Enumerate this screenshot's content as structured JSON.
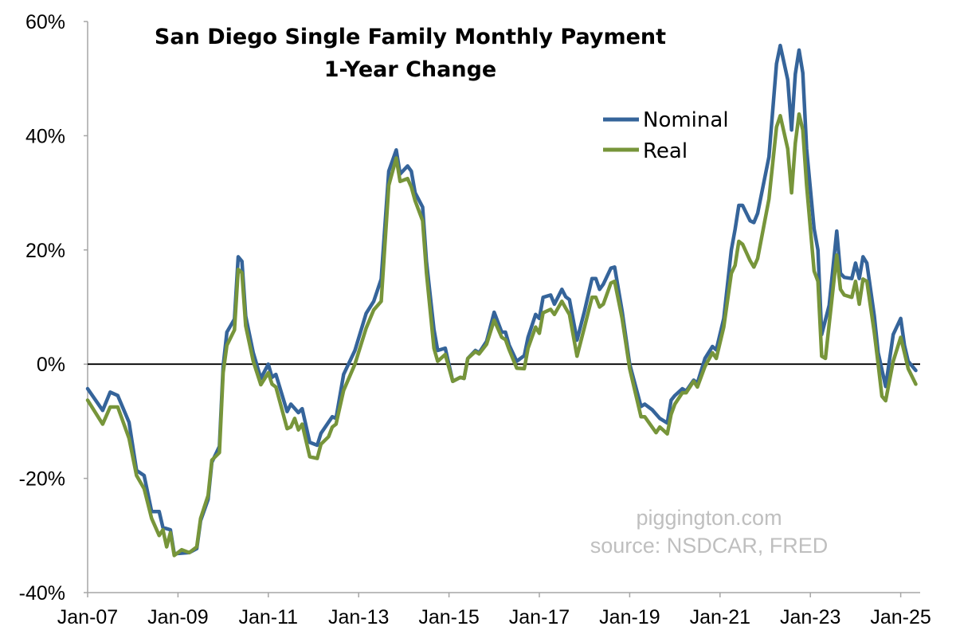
{
  "chart_data": {
    "type": "line",
    "title": "San Diego Single Family Monthly Payment",
    "subtitle": "1-Year Change",
    "xlabel": "",
    "ylabel": "",
    "ylim": [
      -40,
      60
    ],
    "y_ticks": [
      "60%",
      "40%",
      "20%",
      "0%",
      "-20%",
      "-40%"
    ],
    "y_tick_values": [
      60,
      40,
      20,
      0,
      -20,
      -40
    ],
    "x_ticks": [
      "Jan-07",
      "Jan-09",
      "Jan-11",
      "Jan-13",
      "Jan-15",
      "Jan-17",
      "Jan-19",
      "Jan-21",
      "Jan-23",
      "Jan-25"
    ],
    "x_tick_dates": [
      "2007-01",
      "2009-01",
      "2011-01",
      "2013-01",
      "2015-01",
      "2017-01",
      "2019-01",
      "2021-01",
      "2023-01",
      "2025-01"
    ],
    "xlim": [
      "2007-01",
      "2025-05"
    ],
    "grid": false,
    "zero_line": true,
    "legend_placement": "top-right",
    "watermark": [
      "piggington.com",
      "source: NSDCAR, FRED"
    ],
    "series": [
      {
        "name": "Nominal",
        "color": "#35649a",
        "points": [
          [
            "2007-01",
            -4.3
          ],
          [
            "2007-05",
            -8.1
          ],
          [
            "2007-07",
            -4.9
          ],
          [
            "2007-09",
            -5.5
          ],
          [
            "2007-12",
            -10.2
          ],
          [
            "2008-02",
            -18.6
          ],
          [
            "2008-04",
            -19.5
          ],
          [
            "2008-06",
            -25.8
          ],
          [
            "2008-08",
            -25.8
          ],
          [
            "2008-09",
            -28.6
          ],
          [
            "2008-11",
            -29
          ],
          [
            "2008-12",
            -33.2
          ],
          [
            "2009-04",
            -33
          ],
          [
            "2009-06",
            -32.3
          ],
          [
            "2009-07",
            -27.4
          ],
          [
            "2009-09",
            -23.7
          ],
          [
            "2009-10",
            -17.2
          ],
          [
            "2009-12",
            -14.4
          ],
          [
            "2010-01",
            -0.4
          ],
          [
            "2010-02",
            5.6
          ],
          [
            "2010-04",
            7.9
          ],
          [
            "2010-05",
            18.8
          ],
          [
            "2010-06",
            18
          ],
          [
            "2010-07",
            8.4
          ],
          [
            "2010-09",
            2
          ],
          [
            "2010-11",
            -2.5
          ],
          [
            "2011-01",
            0
          ],
          [
            "2011-02",
            -2.3
          ],
          [
            "2011-03",
            -1.8
          ],
          [
            "2011-06",
            -8.3
          ],
          [
            "2011-07",
            -7
          ],
          [
            "2011-09",
            -8.5
          ],
          [
            "2011-10",
            -7.8
          ],
          [
            "2011-12",
            -13.7
          ],
          [
            "2012-02",
            -14.2
          ],
          [
            "2012-03",
            -12.1
          ],
          [
            "2012-06",
            -9.2
          ],
          [
            "2012-07",
            -9.5
          ],
          [
            "2012-09",
            -1.8
          ],
          [
            "2012-12",
            2.4
          ],
          [
            "2013-03",
            8.9
          ],
          [
            "2013-05",
            11
          ],
          [
            "2013-07",
            14.9
          ],
          [
            "2013-09",
            33.8
          ],
          [
            "2013-11",
            37.5
          ],
          [
            "2013-12",
            33.3
          ],
          [
            "2014-02",
            34.7
          ],
          [
            "2014-03",
            33.8
          ],
          [
            "2014-04",
            30
          ],
          [
            "2014-06",
            27.5
          ],
          [
            "2014-07",
            18
          ],
          [
            "2014-09",
            6.1
          ],
          [
            "2014-10",
            2.4
          ],
          [
            "2014-12",
            2.8
          ],
          [
            "2015-02",
            -3
          ],
          [
            "2015-04",
            -2.3
          ],
          [
            "2015-05",
            -2.5
          ],
          [
            "2015-06",
            1
          ],
          [
            "2015-08",
            2.4
          ],
          [
            "2015-09",
            2
          ],
          [
            "2015-11",
            4
          ],
          [
            "2016-01",
            9.1
          ],
          [
            "2016-03",
            5.6
          ],
          [
            "2016-04",
            5.6
          ],
          [
            "2016-05",
            3.3
          ],
          [
            "2016-07",
            0.5
          ],
          [
            "2016-09",
            1.5
          ],
          [
            "2016-10",
            4.7
          ],
          [
            "2016-12",
            8.7
          ],
          [
            "2017-01",
            8
          ],
          [
            "2017-02",
            11.7
          ],
          [
            "2017-04",
            12.1
          ],
          [
            "2017-05",
            10.5
          ],
          [
            "2017-07",
            13.1
          ],
          [
            "2017-08",
            11.8
          ],
          [
            "2017-09",
            11.3
          ],
          [
            "2017-11",
            4.2
          ],
          [
            "2018-01",
            9.3
          ],
          [
            "2018-03",
            15
          ],
          [
            "2018-04",
            15
          ],
          [
            "2018-05",
            13.1
          ],
          [
            "2018-06",
            14
          ],
          [
            "2018-08",
            16.8
          ],
          [
            "2018-09",
            17
          ],
          [
            "2018-11",
            9.3
          ],
          [
            "2019-01",
            0
          ],
          [
            "2019-04",
            -7.4
          ],
          [
            "2019-05",
            -7
          ],
          [
            "2019-07",
            -8
          ],
          [
            "2019-09",
            -9.5
          ],
          [
            "2019-11",
            -10.3
          ],
          [
            "2019-12",
            -6.3
          ],
          [
            "2020-01",
            -5.5
          ],
          [
            "2020-03",
            -4.3
          ],
          [
            "2020-04",
            -4.7
          ],
          [
            "2020-06",
            -2.8
          ],
          [
            "2020-07",
            -3.3
          ],
          [
            "2020-09",
            1
          ],
          [
            "2020-11",
            3.1
          ],
          [
            "2020-12",
            2.5
          ],
          [
            "2021-02",
            8
          ],
          [
            "2021-04",
            20
          ],
          [
            "2021-05",
            23.6
          ],
          [
            "2021-06",
            27.8
          ],
          [
            "2021-07",
            27.8
          ],
          [
            "2021-09",
            25.1
          ],
          [
            "2021-10",
            24.8
          ],
          [
            "2021-11",
            26.4
          ],
          [
            "2022-02",
            36.3
          ],
          [
            "2022-04",
            52.6
          ],
          [
            "2022-05",
            55.8
          ],
          [
            "2022-07",
            49.8
          ],
          [
            "2022-08",
            41
          ],
          [
            "2022-09",
            50.8
          ],
          [
            "2022-10",
            55
          ],
          [
            "2022-11",
            51
          ],
          [
            "2022-12",
            37.7
          ],
          [
            "2023-02",
            23.7
          ],
          [
            "2023-03",
            20
          ],
          [
            "2023-04",
            5.2
          ],
          [
            "2023-06",
            10.3
          ],
          [
            "2023-08",
            23.3
          ],
          [
            "2023-09",
            15.9
          ],
          [
            "2023-10",
            15.2
          ],
          [
            "2023-12",
            15
          ],
          [
            "2024-01",
            17.7
          ],
          [
            "2024-02",
            15
          ],
          [
            "2024-03",
            18.8
          ],
          [
            "2024-04",
            17.7
          ],
          [
            "2024-06",
            8.4
          ],
          [
            "2024-07",
            2
          ],
          [
            "2024-09",
            -3.9
          ],
          [
            "2024-11",
            5.2
          ],
          [
            "2025-01",
            8
          ],
          [
            "2025-02",
            3.3
          ],
          [
            "2025-03",
            0.5
          ],
          [
            "2025-05",
            -1.1
          ]
        ]
      },
      {
        "name": "Real",
        "color": "#77953a",
        "points": [
          [
            "2007-01",
            -6.3
          ],
          [
            "2007-05",
            -10.5
          ],
          [
            "2007-07",
            -7.5
          ],
          [
            "2007-09",
            -7.5
          ],
          [
            "2007-12",
            -13
          ],
          [
            "2008-02",
            -19.5
          ],
          [
            "2008-04",
            -21.8
          ],
          [
            "2008-06",
            -27
          ],
          [
            "2008-08",
            -30
          ],
          [
            "2008-09",
            -29
          ],
          [
            "2008-10",
            -32
          ],
          [
            "2008-11",
            -29.5
          ],
          [
            "2008-12",
            -33.5
          ],
          [
            "2009-02",
            -32.5
          ],
          [
            "2009-04",
            -33
          ],
          [
            "2009-06",
            -32
          ],
          [
            "2009-07",
            -27
          ],
          [
            "2009-09",
            -23
          ],
          [
            "2009-10",
            -16.8
          ],
          [
            "2009-12",
            -15.5
          ],
          [
            "2010-01",
            -1.5
          ],
          [
            "2010-02",
            3.3
          ],
          [
            "2010-04",
            6
          ],
          [
            "2010-05",
            16.6
          ],
          [
            "2010-06",
            16
          ],
          [
            "2010-07",
            6.7
          ],
          [
            "2010-09",
            0.5
          ],
          [
            "2010-11",
            -3.6
          ],
          [
            "2011-01",
            -1.5
          ],
          [
            "2011-02",
            -3.5
          ],
          [
            "2011-03",
            -4
          ],
          [
            "2011-06",
            -11.3
          ],
          [
            "2011-07",
            -11
          ],
          [
            "2011-08",
            -9.5
          ],
          [
            "2011-09",
            -11.5
          ],
          [
            "2011-10",
            -10.5
          ],
          [
            "2011-12",
            -16.2
          ],
          [
            "2012-02",
            -16.5
          ],
          [
            "2012-03",
            -14
          ],
          [
            "2012-05",
            -12.7
          ],
          [
            "2012-06",
            -11
          ],
          [
            "2012-07",
            -10.5
          ],
          [
            "2012-09",
            -4.6
          ],
          [
            "2012-12",
            0
          ],
          [
            "2013-03",
            6.3
          ],
          [
            "2013-05",
            9.5
          ],
          [
            "2013-07",
            11
          ],
          [
            "2013-09",
            31.3
          ],
          [
            "2013-11",
            36.1
          ],
          [
            "2013-12",
            32
          ],
          [
            "2014-02",
            32.5
          ],
          [
            "2014-03",
            31
          ],
          [
            "2014-04",
            28.6
          ],
          [
            "2014-06",
            25.1
          ],
          [
            "2014-07",
            16
          ],
          [
            "2014-09",
            2.8
          ],
          [
            "2014-10",
            0.5
          ],
          [
            "2014-12",
            1.7
          ],
          [
            "2015-02",
            -3
          ],
          [
            "2015-04",
            -2.3
          ],
          [
            "2015-05",
            -2.5
          ],
          [
            "2015-06",
            1
          ],
          [
            "2015-08",
            2.2
          ],
          [
            "2015-09",
            1.8
          ],
          [
            "2015-11",
            3.5
          ],
          [
            "2016-01",
            7.7
          ],
          [
            "2016-03",
            4.7
          ],
          [
            "2016-04",
            4.3
          ],
          [
            "2016-05",
            2.5
          ],
          [
            "2016-07",
            -0.7
          ],
          [
            "2016-09",
            -0.8
          ],
          [
            "2016-10",
            2.8
          ],
          [
            "2016-12",
            6.5
          ],
          [
            "2017-01",
            5.4
          ],
          [
            "2017-02",
            9
          ],
          [
            "2017-04",
            9.6
          ],
          [
            "2017-05",
            8.7
          ],
          [
            "2017-07",
            11
          ],
          [
            "2017-08",
            9.8
          ],
          [
            "2017-09",
            8.7
          ],
          [
            "2017-11",
            1.4
          ],
          [
            "2018-01",
            6.5
          ],
          [
            "2018-03",
            11.7
          ],
          [
            "2018-04",
            11.7
          ],
          [
            "2018-05",
            10
          ],
          [
            "2018-06",
            10.5
          ],
          [
            "2018-08",
            14.2
          ],
          [
            "2018-09",
            14.5
          ],
          [
            "2018-11",
            8
          ],
          [
            "2019-01",
            -0.8
          ],
          [
            "2019-04",
            -9.2
          ],
          [
            "2019-05",
            -9.2
          ],
          [
            "2019-08",
            -12
          ],
          [
            "2019-09",
            -11
          ],
          [
            "2019-11",
            -12.2
          ],
          [
            "2019-12",
            -8.8
          ],
          [
            "2020-01",
            -7
          ],
          [
            "2020-03",
            -5
          ],
          [
            "2020-04",
            -5
          ],
          [
            "2020-06",
            -3
          ],
          [
            "2020-07",
            -4
          ],
          [
            "2020-09",
            -0.4
          ],
          [
            "2020-11",
            2
          ],
          [
            "2020-12",
            1
          ],
          [
            "2021-02",
            6.5
          ],
          [
            "2021-04",
            15.9
          ],
          [
            "2021-05",
            17.3
          ],
          [
            "2021-06",
            21.5
          ],
          [
            "2021-07",
            21
          ],
          [
            "2021-09",
            18.1
          ],
          [
            "2021-10",
            17
          ],
          [
            "2021-11",
            18.5
          ],
          [
            "2022-02",
            28.9
          ],
          [
            "2022-04",
            41.5
          ],
          [
            "2022-05",
            43.5
          ],
          [
            "2022-07",
            37.7
          ],
          [
            "2022-08",
            30
          ],
          [
            "2022-09",
            38.7
          ],
          [
            "2022-10",
            43.8
          ],
          [
            "2022-11",
            41
          ],
          [
            "2022-12",
            31.3
          ],
          [
            "2023-02",
            16.3
          ],
          [
            "2023-03",
            14.5
          ],
          [
            "2023-04",
            1.4
          ],
          [
            "2023-05",
            1
          ],
          [
            "2023-06",
            7
          ],
          [
            "2023-08",
            19.1
          ],
          [
            "2023-09",
            13.1
          ],
          [
            "2023-10",
            12.1
          ],
          [
            "2023-12",
            11.7
          ],
          [
            "2024-01",
            14.5
          ],
          [
            "2024-02",
            10.5
          ],
          [
            "2024-03",
            14.9
          ],
          [
            "2024-04",
            14.5
          ],
          [
            "2024-06",
            5.5
          ],
          [
            "2024-07",
            0
          ],
          [
            "2024-08",
            -5.6
          ],
          [
            "2024-09",
            -6.4
          ],
          [
            "2024-11",
            0.5
          ],
          [
            "2025-01",
            4.7
          ],
          [
            "2025-02",
            2
          ],
          [
            "2025-03",
            -0.8
          ],
          [
            "2025-05",
            -3.5
          ]
        ]
      }
    ]
  }
}
